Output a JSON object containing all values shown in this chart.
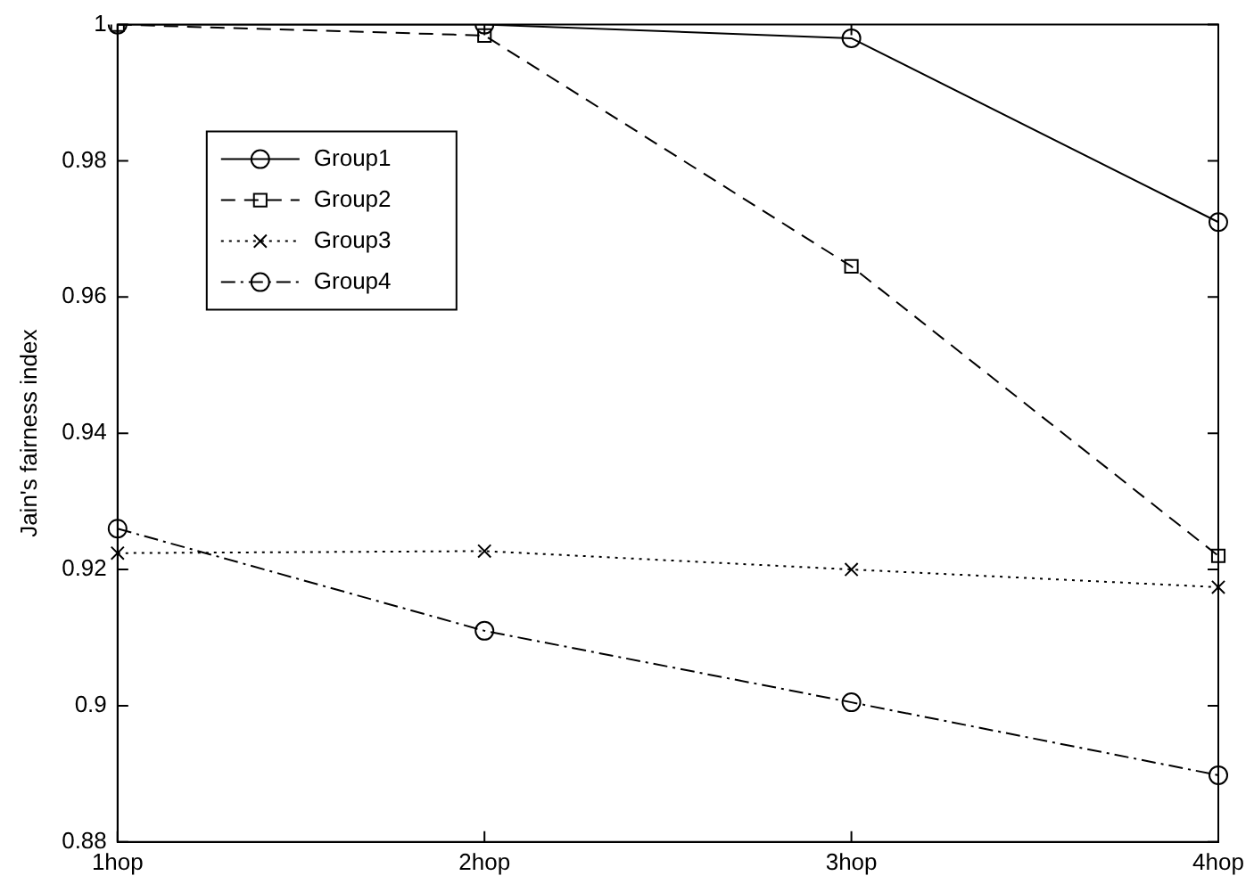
{
  "chart_data": {
    "type": "line",
    "ylabel": "Jain's fairness index",
    "categories": [
      "1hop",
      "2hop",
      "3hop",
      "4hop"
    ],
    "series": [
      {
        "name": "Group1",
        "color": "#000000",
        "marker": "circle",
        "line_style": "solid",
        "values": [
          1.0,
          1.0,
          0.998,
          0.971
        ]
      },
      {
        "name": "Group2",
        "color": "#000000",
        "marker": "square",
        "line_style": "dashed",
        "values": [
          1.0,
          0.9984,
          0.9645,
          0.922
        ]
      },
      {
        "name": "Group3",
        "color": "#000000",
        "marker": "cross",
        "line_style": "dotted",
        "values": [
          0.9224,
          0.9227,
          0.92,
          0.9174
        ]
      },
      {
        "name": "Group4",
        "color": "#000000",
        "marker": "circle",
        "line_style": "dashdot",
        "values": [
          0.926,
          0.911,
          0.9005,
          0.8898
        ]
      }
    ],
    "ylim": [
      0.88,
      1.0
    ],
    "yticks": [
      0.88,
      0.9,
      0.92,
      0.94,
      0.96,
      0.98,
      1
    ],
    "grid": false,
    "legend": "top left"
  }
}
